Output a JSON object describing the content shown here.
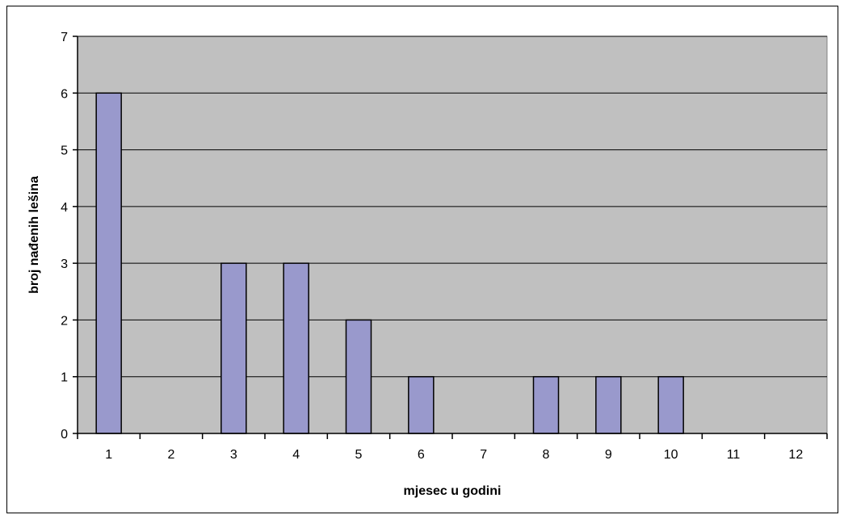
{
  "chart_data": {
    "type": "bar",
    "categories": [
      "1",
      "2",
      "3",
      "4",
      "5",
      "6",
      "7",
      "8",
      "9",
      "10",
      "11",
      "12"
    ],
    "values": [
      6,
      0,
      3,
      3,
      2,
      1,
      0,
      1,
      1,
      1,
      0,
      0
    ],
    "title": "",
    "xlabel": "mjesec u godini",
    "ylabel": "broj nađenih lešina",
    "ylim": [
      0,
      7
    ],
    "yticks": [
      "0",
      "1",
      "2",
      "3",
      "4",
      "5",
      "6",
      "7"
    ],
    "grid": true,
    "legend": "none",
    "colors": {
      "bar_fill": "#9999cc",
      "bar_stroke": "#000000",
      "plot_background": "#c0c0c0",
      "gridline": "#000000"
    }
  }
}
